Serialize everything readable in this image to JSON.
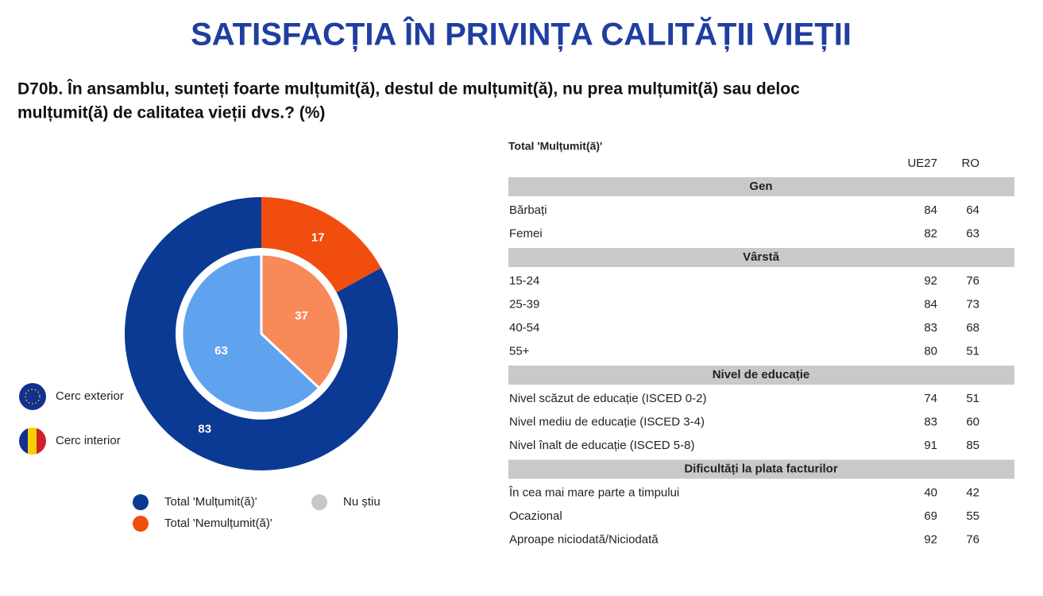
{
  "title": "SATISFACȚIA ÎN PRIVINȚA CALITĂȚII VIEȚII",
  "question": [
    "D70b. În ansamblu, sunteți foarte mulțumit(ă), destul de mulțumit(ă), nu prea mulțumit(ă) sau deloc",
    "mulțumit(ă) de calitatea vieții dvs.? (%)"
  ],
  "chart_data": {
    "type": "donut",
    "categories": [
      "Total 'Mulțumit(ă)'",
      "Total 'Nemulțumit(ă)'",
      "Nu știu"
    ],
    "legend_colors": [
      "#0b3a94",
      "#f04d0e",
      "#c8c8c8"
    ],
    "series": [
      {
        "name": "Cerc exterior",
        "colors": [
          "#0b3a94",
          "#f04d0e",
          "#c8c8c8"
        ],
        "values": [
          83,
          17,
          0
        ]
      },
      {
        "name": "Cerc interior",
        "colors": [
          "#5fa3ee",
          "#f88a5a",
          "#c8c8c8"
        ],
        "values": [
          63,
          37,
          0
        ]
      }
    ]
  },
  "table": {
    "title": "Total 'Mulțumit(ă)'",
    "columns": [
      "UE27",
      "RO"
    ],
    "groups": [
      {
        "title": "Gen",
        "rows": [
          [
            "Bărbați",
            84,
            64
          ],
          [
            "Femei",
            82,
            63
          ]
        ]
      },
      {
        "title": "Vârstă",
        "rows": [
          [
            "15-24",
            92,
            76
          ],
          [
            "25-39",
            84,
            73
          ],
          [
            "40-54",
            83,
            68
          ],
          [
            "55+",
            80,
            51
          ]
        ]
      },
      {
        "title": "Nivel de educație",
        "rows": [
          [
            "Nivel scăzut de educație (ISCED 0-2)",
            74,
            51
          ],
          [
            "Nivel mediu de educație (ISCED 3-4)",
            83,
            60
          ],
          [
            "Nivel înalt de educație (ISCED 5-8)",
            91,
            85
          ]
        ]
      },
      {
        "title": "Dificultăți la plata facturilor",
        "rows": [
          [
            "În cea mai mare parte a timpului",
            40,
            42
          ],
          [
            "Ocazional",
            69,
            55
          ],
          [
            "Aproape niciodată/Niciodată",
            92,
            76
          ]
        ]
      }
    ]
  }
}
